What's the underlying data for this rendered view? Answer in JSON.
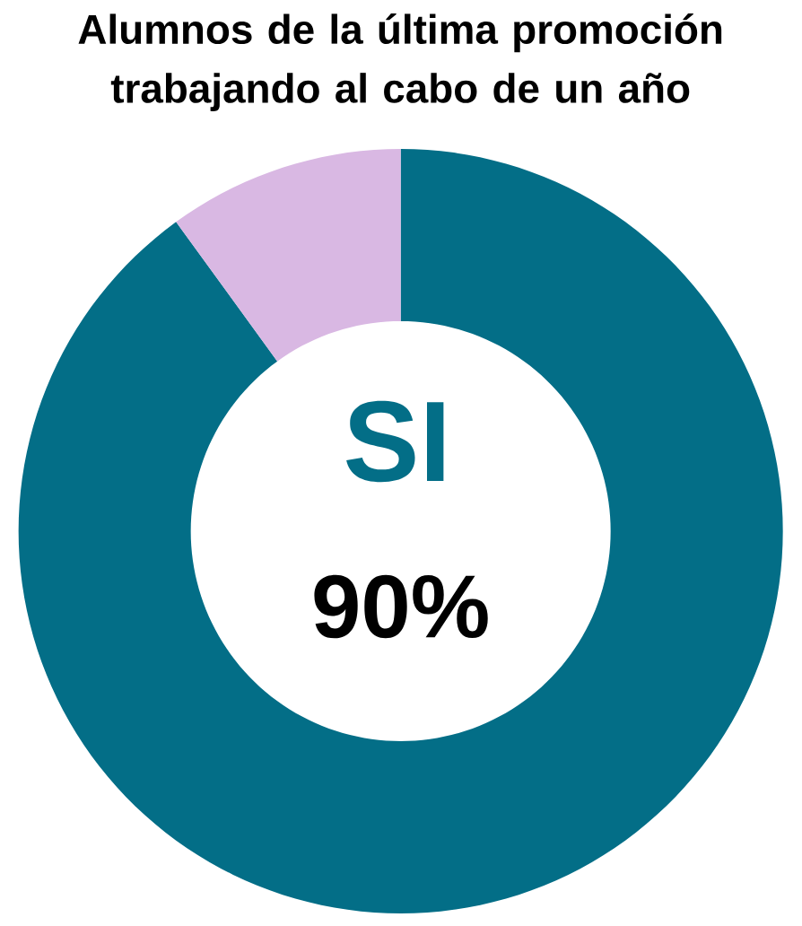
{
  "chart_data": {
    "type": "donut",
    "title": "Alumnos de la última promoción trabajando al cabo de un año",
    "categories": [
      "SI",
      null
    ],
    "values": [
      90,
      10
    ],
    "colors": [
      "#036e87",
      "#d9b8e3"
    ],
    "value_labels": [
      "90%",
      null
    ]
  }
}
